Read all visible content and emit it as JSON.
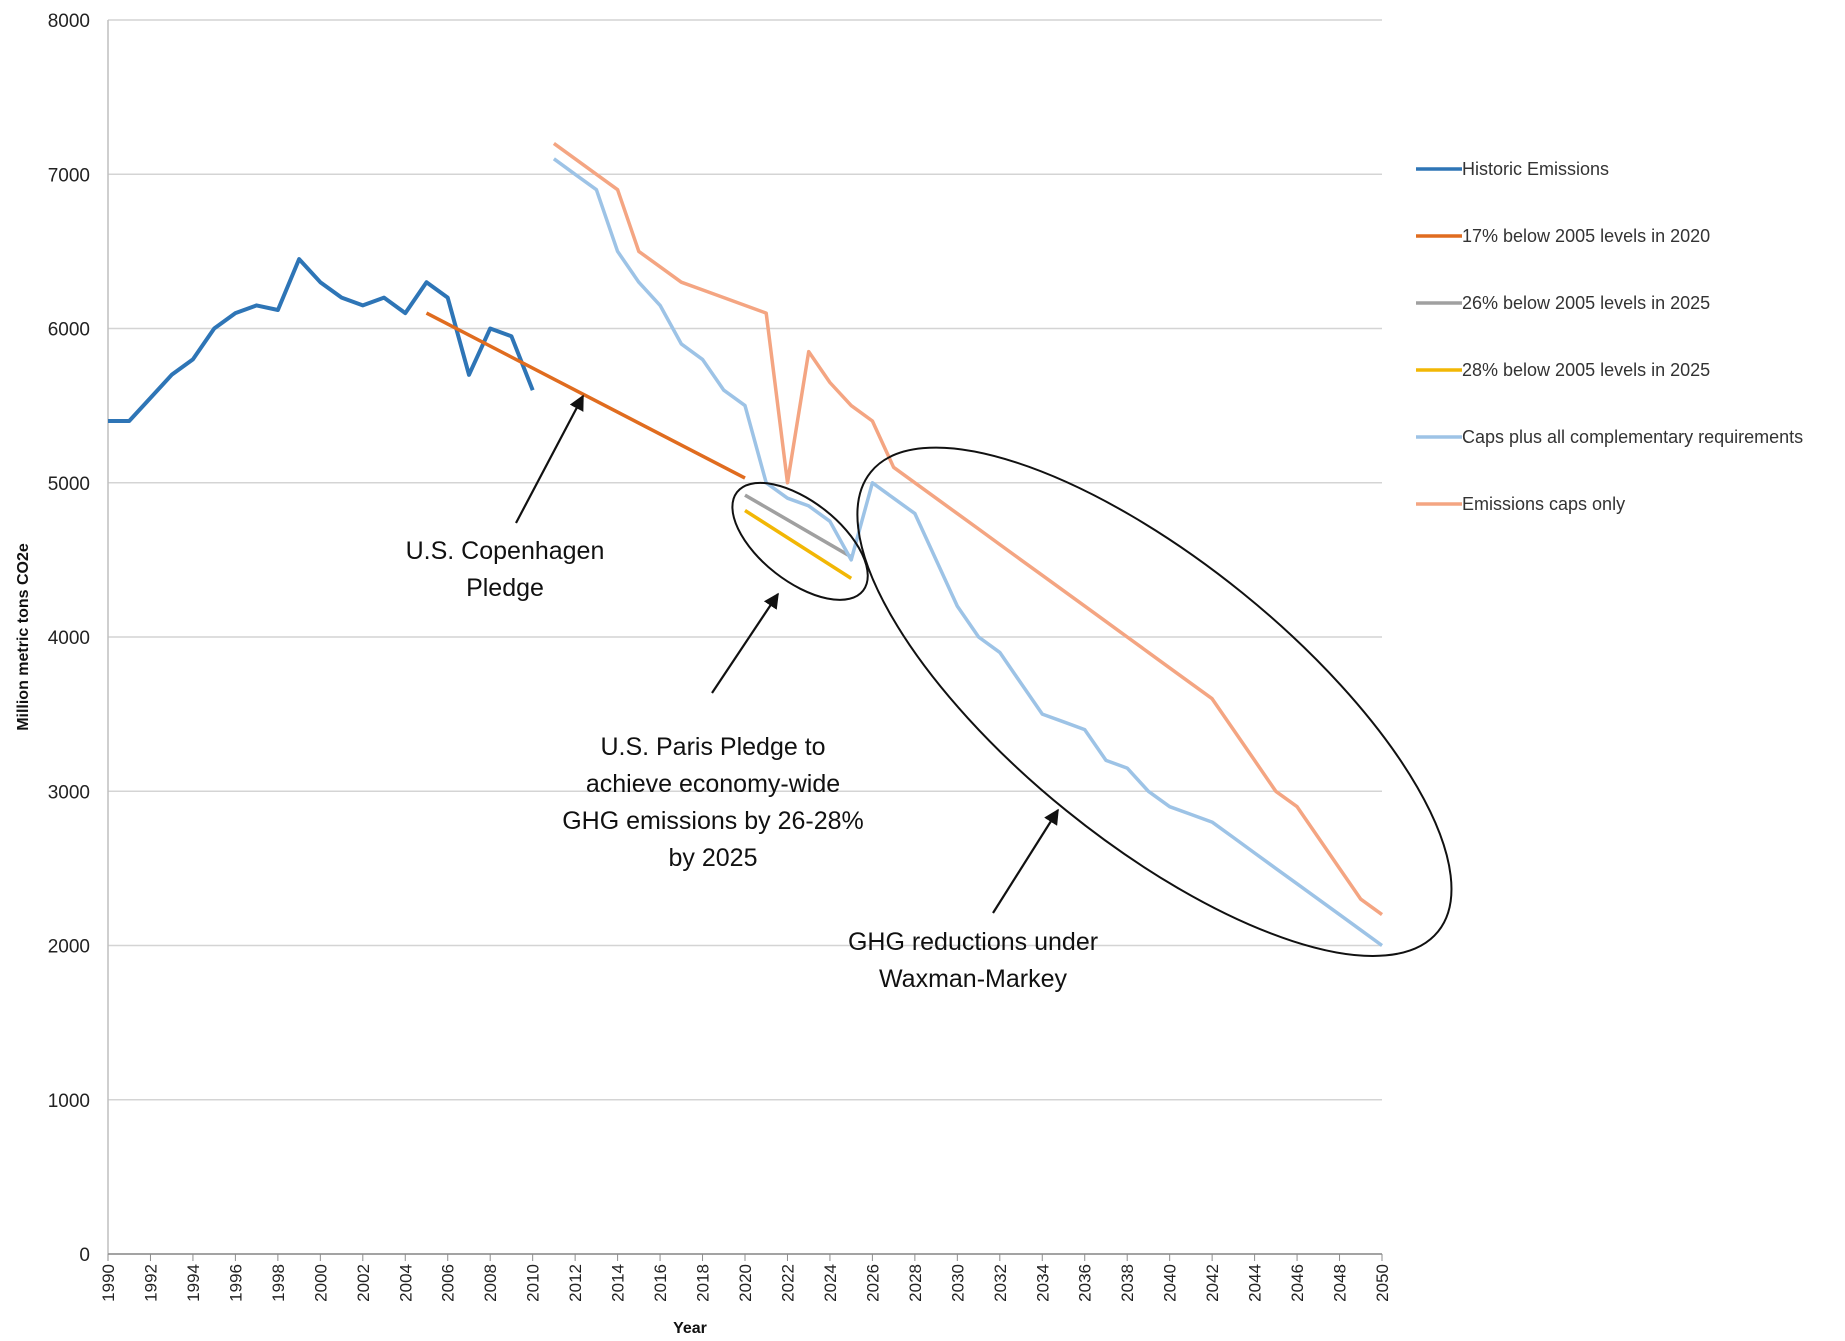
{
  "chart_data": {
    "type": "line",
    "xlabel": "Year",
    "ylabel": "Million metric tons CO2e",
    "xlim": [
      1990,
      2050
    ],
    "ylim": [
      0,
      8000
    ],
    "y_ticks": [
      0,
      1000,
      2000,
      3000,
      4000,
      5000,
      6000,
      7000,
      8000
    ],
    "x_ticks": [
      1990,
      1992,
      1994,
      1996,
      1998,
      2000,
      2002,
      2004,
      2006,
      2008,
      2010,
      2012,
      2014,
      2016,
      2018,
      2020,
      2022,
      2024,
      2026,
      2028,
      2030,
      2032,
      2034,
      2036,
      2038,
      2040,
      2042,
      2044,
      2046,
      2048,
      2050
    ],
    "grid": true,
    "legend_position": "right",
    "series": [
      {
        "name": "Historic Emissions",
        "color": "#2e75b6",
        "x": [
          1990,
          1991,
          1992,
          1993,
          1994,
          1995,
          1996,
          1997,
          1998,
          1999,
          2000,
          2001,
          2002,
          2003,
          2004,
          2005,
          2006,
          2007,
          2008,
          2009,
          2010
        ],
        "y": [
          5400,
          5400,
          5550,
          5700,
          5800,
          6000,
          6100,
          6150,
          6120,
          6450,
          6300,
          6200,
          6150,
          6200,
          6100,
          6300,
          6200,
          5700,
          6000,
          5950,
          5600
        ]
      },
      {
        "name": "17% below 2005 levels in 2020",
        "color": "#e06c1f",
        "x": [
          2005,
          2020
        ],
        "y": [
          6100,
          5030
        ]
      },
      {
        "name": "26% below 2005 levels in 2025",
        "color": "#a0a0a0",
        "x": [
          2020,
          2025
        ],
        "y": [
          4920,
          4520
        ]
      },
      {
        "name": "28% below 2005 levels in 2025",
        "color": "#f2b705",
        "x": [
          2020,
          2025
        ],
        "y": [
          4820,
          4380
        ]
      },
      {
        "name": "Caps plus all complementary requirements",
        "color": "#9dc3e6",
        "x": [
          2011,
          2012,
          2013,
          2014,
          2015,
          2016,
          2017,
          2018,
          2019,
          2020,
          2021,
          2022,
          2023,
          2024,
          2025,
          2026,
          2027,
          2028,
          2029,
          2030,
          2031,
          2032,
          2033,
          2034,
          2035,
          2036,
          2037,
          2038,
          2039,
          2040,
          2041,
          2042,
          2043,
          2044,
          2045,
          2046,
          2047,
          2048,
          2049,
          2050
        ],
        "y": [
          7100,
          7000,
          6900,
          6500,
          6300,
          6150,
          5900,
          5800,
          5600,
          5500,
          5000,
          4900,
          4850,
          4750,
          4500,
          5000,
          4900,
          4800,
          4500,
          4200,
          4000,
          3900,
          3700,
          3500,
          3450,
          3400,
          3200,
          3150,
          3000,
          2900,
          2850,
          2800,
          2700,
          2600,
          2500,
          2400,
          2300,
          2200,
          2100,
          2000
        ]
      },
      {
        "name": "Emissions caps only",
        "color": "#f4a582",
        "x": [
          2011,
          2012,
          2013,
          2014,
          2015,
          2016,
          2017,
          2018,
          2019,
          2020,
          2021,
          2022,
          2023,
          2024,
          2025,
          2026,
          2027,
          2028,
          2029,
          2030,
          2031,
          2032,
          2033,
          2034,
          2035,
          2036,
          2037,
          2038,
          2039,
          2040,
          2041,
          2042,
          2043,
          2044,
          2045,
          2046,
          2047,
          2048,
          2049,
          2050
        ],
        "y": [
          7200,
          7100,
          7000,
          6900,
          6500,
          6400,
          6300,
          6250,
          6200,
          6150,
          6100,
          5000,
          5850,
          5650,
          5500,
          5400,
          5100,
          5000,
          4900,
          4800,
          4700,
          4600,
          4500,
          4400,
          4300,
          4200,
          4100,
          4000,
          3900,
          3800,
          3700,
          3600,
          3400,
          3200,
          3000,
          2900,
          2700,
          2500,
          2300,
          2200
        ]
      }
    ],
    "annotations": [
      {
        "lines": [
          "U.S. Copenhagen",
          "Pledge"
        ]
      },
      {
        "lines": [
          "U.S. Paris Pledge to",
          "achieve economy-wide",
          "GHG emissions by 26-28%",
          "by 2025"
        ]
      },
      {
        "lines": [
          "GHG reductions under",
          "Waxman-Markey"
        ]
      }
    ]
  }
}
